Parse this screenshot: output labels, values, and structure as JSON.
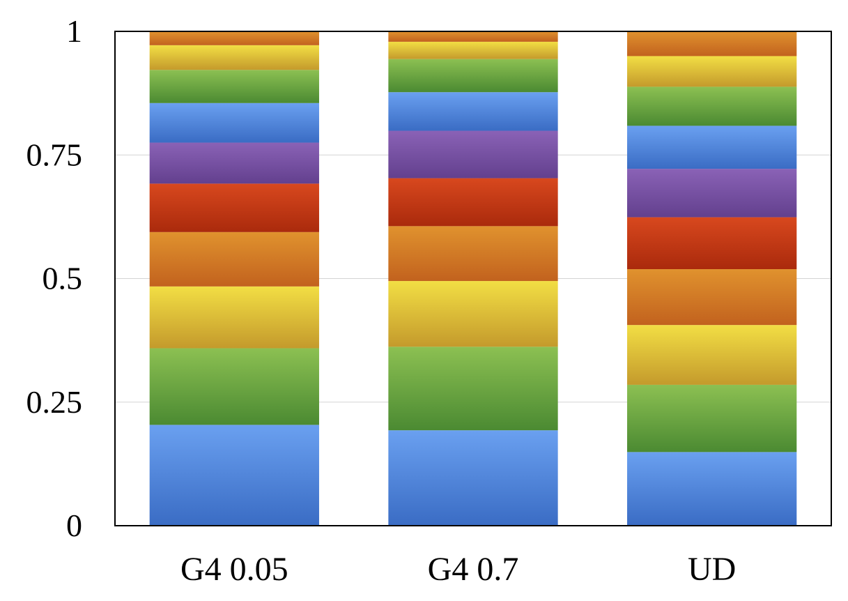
{
  "chart_data": {
    "type": "bar",
    "stacked": true,
    "title": "",
    "xlabel": "",
    "ylabel": "",
    "ylim": [
      0,
      1
    ],
    "yticks": [
      "0",
      "0.25",
      "0.5",
      "0.75",
      "1"
    ],
    "grid": true,
    "legend": "none",
    "categories": [
      "G4 0.05",
      "G4 0.7",
      "UD"
    ],
    "segment_colors": [
      [
        "#6aa0f0",
        "#3a6cc4"
      ],
      [
        "#8cc052",
        "#4b8a32"
      ],
      [
        "#f2de44",
        "#c49a2c"
      ],
      [
        "#e0922e",
        "#c2621e"
      ],
      [
        "#d8481e",
        "#aa2a0c"
      ],
      [
        "#8a62b6",
        "#63408e"
      ],
      [
        "#6aa0f0",
        "#3a6cc4"
      ],
      [
        "#8cc052",
        "#4b8a32"
      ],
      [
        "#f2de44",
        "#c49a2c"
      ],
      [
        "#e0922e",
        "#c2621e"
      ]
    ],
    "series": [
      {
        "values": [
          0.204,
          0.193,
          0.149
        ]
      },
      {
        "values": [
          0.155,
          0.169,
          0.136
        ]
      },
      {
        "values": [
          0.125,
          0.133,
          0.121
        ]
      },
      {
        "values": [
          0.11,
          0.111,
          0.113
        ]
      },
      {
        "values": [
          0.098,
          0.097,
          0.105
        ]
      },
      {
        "values": [
          0.083,
          0.096,
          0.098
        ]
      },
      {
        "values": [
          0.08,
          0.078,
          0.087
        ]
      },
      {
        "values": [
          0.067,
          0.067,
          0.079
        ]
      },
      {
        "values": [
          0.05,
          0.035,
          0.062
        ]
      },
      {
        "values": [
          0.028,
          0.021,
          0.05
        ]
      }
    ]
  }
}
